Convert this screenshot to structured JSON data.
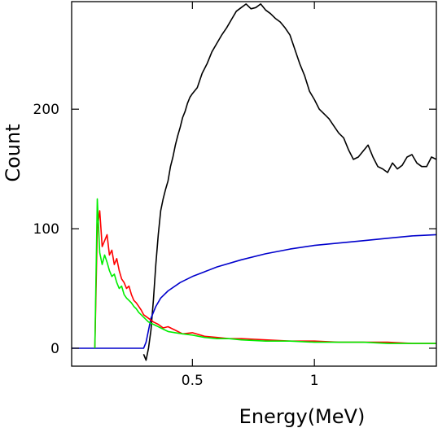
{
  "chart_data": {
    "type": "line",
    "title": "",
    "xlabel": "Energy(MeV)",
    "ylabel": "Count",
    "xlim": [
      0.005,
      1.5
    ],
    "ylim": [
      -15,
      290
    ],
    "grid": false,
    "legend": "none",
    "x_ticks": [
      {
        "value": 0.5,
        "label": "0.5"
      },
      {
        "value": 1.0,
        "label": "1"
      }
    ],
    "y_ticks": [
      {
        "value": 0,
        "label": "0"
      },
      {
        "value": 100,
        "label": "100"
      },
      {
        "value": 200,
        "label": "200"
      }
    ],
    "series": [
      {
        "color": "#000000",
        "x": [
          0.3,
          0.31,
          0.32,
          0.33,
          0.34,
          0.35,
          0.36,
          0.37,
          0.38,
          0.39,
          0.4,
          0.41,
          0.42,
          0.43,
          0.44,
          0.45,
          0.46,
          0.47,
          0.48,
          0.49,
          0.5,
          0.52,
          0.54,
          0.56,
          0.58,
          0.6,
          0.62,
          0.64,
          0.66,
          0.68,
          0.7,
          0.72,
          0.74,
          0.76,
          0.78,
          0.8,
          0.82,
          0.84,
          0.86,
          0.88,
          0.9,
          0.92,
          0.94,
          0.96,
          0.98,
          1.0,
          1.02,
          1.04,
          1.06,
          1.08,
          1.1,
          1.12,
          1.14,
          1.16,
          1.18,
          1.2,
          1.22,
          1.24,
          1.26,
          1.28,
          1.3,
          1.32,
          1.34,
          1.36,
          1.38,
          1.4,
          1.42,
          1.44,
          1.46,
          1.48,
          1.5
        ],
        "y": [
          -5,
          -10,
          0,
          15,
          40,
          70,
          95,
          115,
          125,
          133,
          140,
          152,
          160,
          170,
          178,
          185,
          193,
          198,
          205,
          210,
          213,
          218,
          230,
          238,
          248,
          255,
          262,
          268,
          275,
          282,
          285,
          288,
          284,
          285,
          288,
          283,
          280,
          276,
          273,
          268,
          262,
          250,
          238,
          228,
          215,
          208,
          200,
          196,
          192,
          186,
          180,
          176,
          166,
          158,
          160,
          165,
          170,
          160,
          152,
          150,
          147,
          155,
          150,
          153,
          160,
          162,
          155,
          152,
          152,
          160,
          158
        ]
      },
      {
        "color": "#0000cc",
        "x": [
          0.005,
          0.05,
          0.1,
          0.15,
          0.2,
          0.25,
          0.28,
          0.3,
          0.31,
          0.32,
          0.33,
          0.34,
          0.35,
          0.37,
          0.4,
          0.45,
          0.5,
          0.55,
          0.6,
          0.7,
          0.8,
          0.9,
          1.0,
          1.1,
          1.2,
          1.3,
          1.4,
          1.5
        ],
        "y": [
          0,
          0,
          0,
          0,
          0,
          0,
          0,
          0,
          5,
          15,
          25,
          30,
          35,
          42,
          48,
          55,
          60,
          64,
          68,
          74,
          79,
          83,
          86,
          88,
          90,
          92,
          94,
          95
        ]
      },
      {
        "color": "#ff0000",
        "x": [
          0.1,
          0.11,
          0.12,
          0.13,
          0.14,
          0.15,
          0.16,
          0.17,
          0.18,
          0.19,
          0.2,
          0.21,
          0.22,
          0.23,
          0.24,
          0.25,
          0.26,
          0.27,
          0.28,
          0.29,
          0.3,
          0.32,
          0.34,
          0.36,
          0.38,
          0.4,
          0.43,
          0.46,
          0.5,
          0.55,
          0.6,
          0.65,
          0.7,
          0.8,
          0.9,
          1.0,
          1.1,
          1.2,
          1.3,
          1.4,
          1.5
        ],
        "y": [
          0,
          100,
          115,
          85,
          90,
          95,
          78,
          82,
          70,
          75,
          65,
          58,
          55,
          50,
          52,
          45,
          40,
          38,
          35,
          32,
          28,
          25,
          22,
          20,
          17,
          18,
          15,
          12,
          13,
          10,
          9,
          8,
          8,
          7,
          6,
          6,
          5,
          5,
          5,
          4,
          4
        ]
      },
      {
        "color": "#00ee00",
        "x": [
          0.1,
          0.11,
          0.12,
          0.13,
          0.14,
          0.15,
          0.16,
          0.17,
          0.18,
          0.19,
          0.2,
          0.21,
          0.22,
          0.23,
          0.24,
          0.25,
          0.26,
          0.27,
          0.28,
          0.29,
          0.3,
          0.32,
          0.34,
          0.36,
          0.38,
          0.4,
          0.43,
          0.46,
          0.5,
          0.55,
          0.6,
          0.65,
          0.7,
          0.8,
          0.9,
          1.0,
          1.1,
          1.2,
          1.3,
          1.4,
          1.5
        ],
        "y": [
          0,
          125,
          80,
          70,
          78,
          72,
          65,
          60,
          62,
          55,
          50,
          52,
          45,
          42,
          40,
          38,
          35,
          33,
          30,
          28,
          26,
          22,
          20,
          18,
          16,
          14,
          13,
          12,
          11,
          9,
          8,
          8,
          7,
          6,
          6,
          5,
          5,
          5,
          4,
          4,
          4
        ]
      }
    ]
  }
}
